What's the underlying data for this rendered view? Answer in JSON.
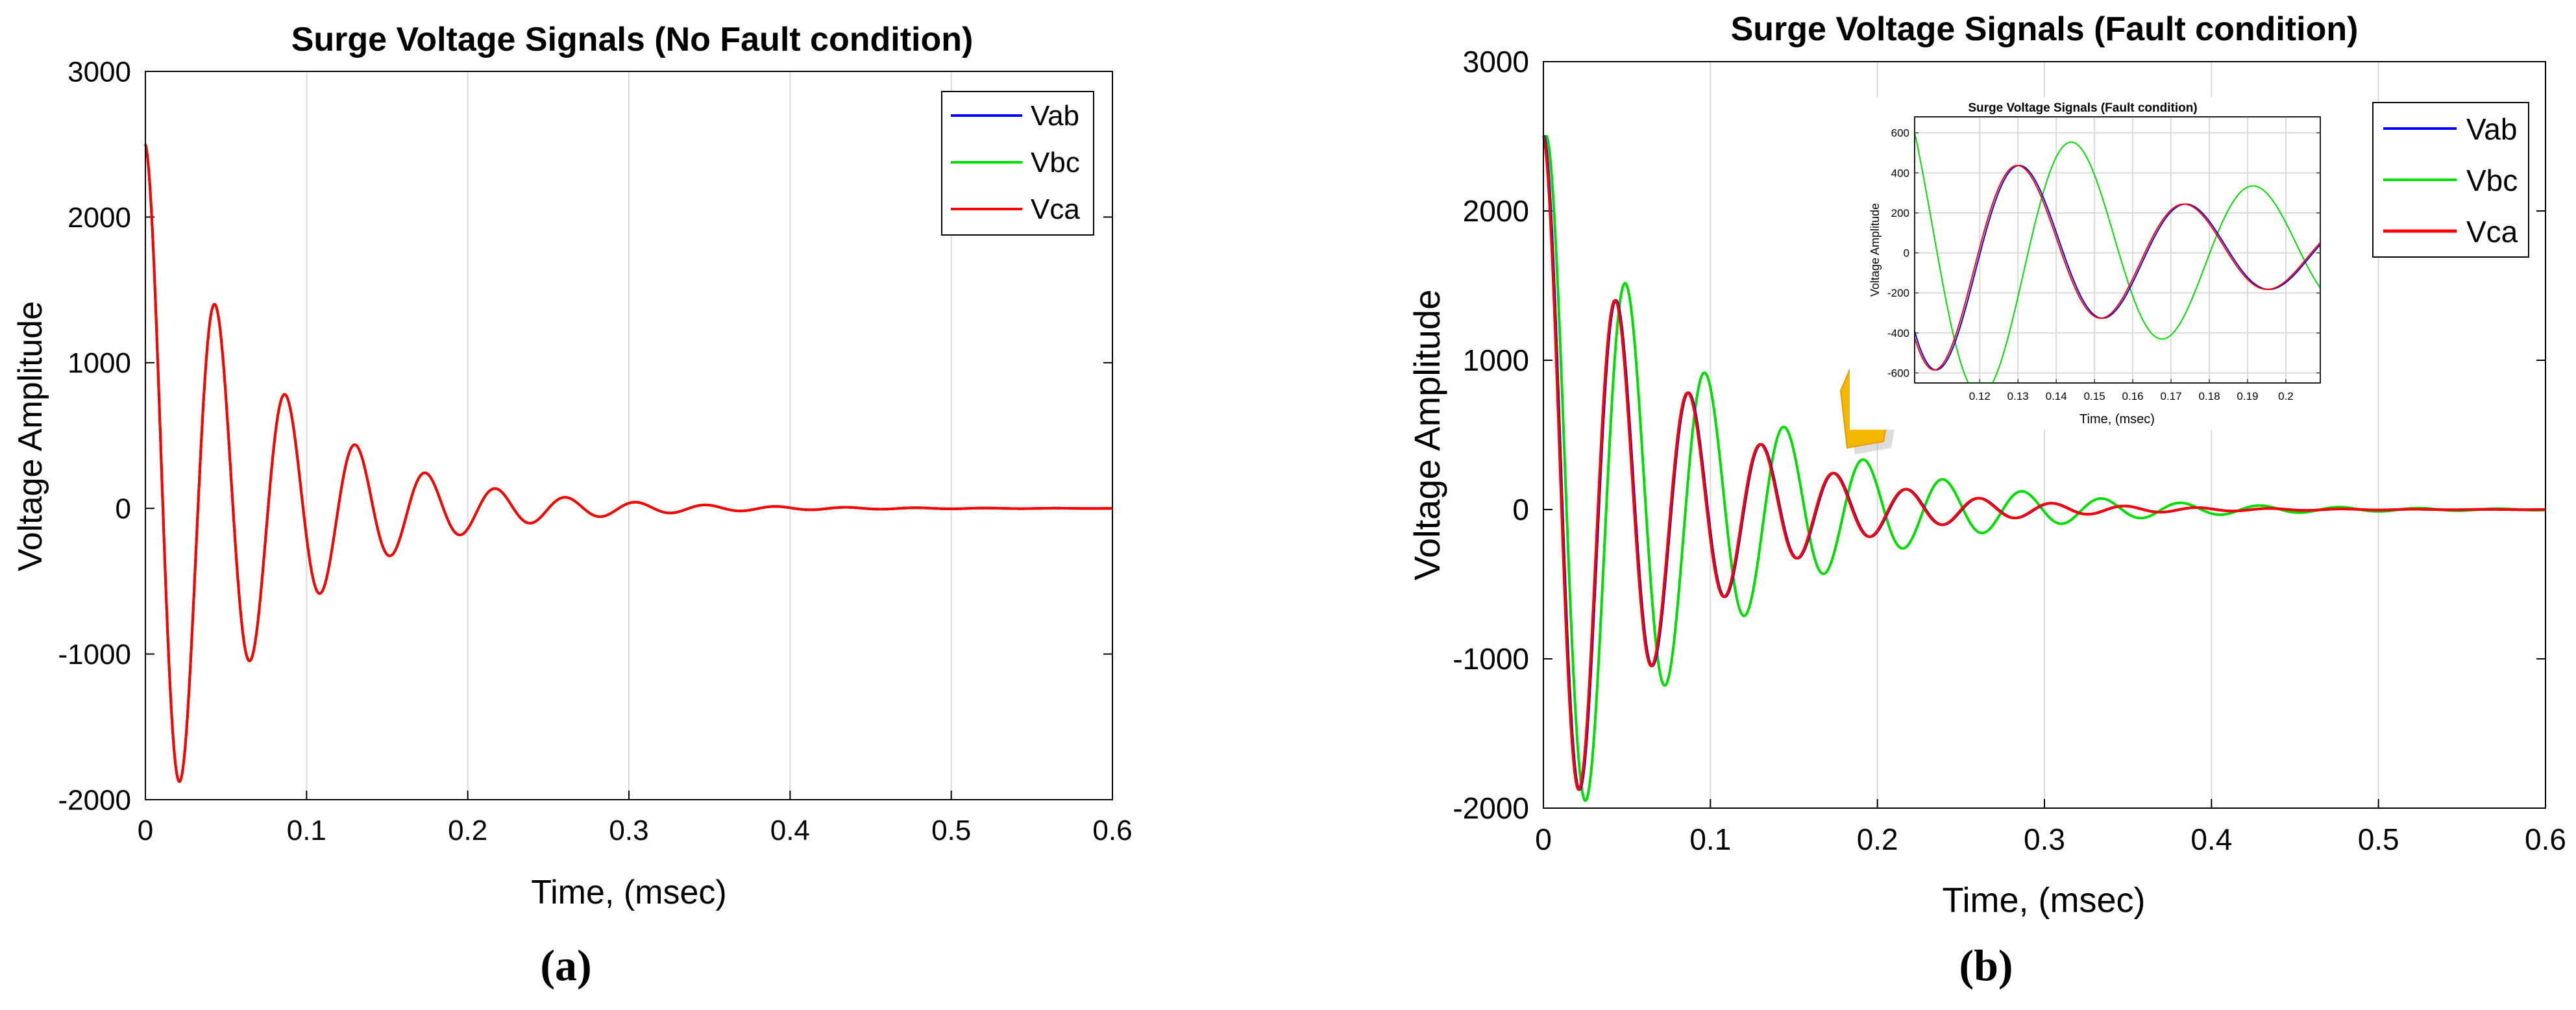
{
  "colors": {
    "Vab": "#0000ff",
    "Vbc": "#00dd00",
    "Vca": "#ff0000",
    "arrow": "#f5b800",
    "arrow_dark": "#e39a00"
  },
  "chart_data": [
    {
      "id": "a",
      "type": "line",
      "caption": "(a)",
      "title": "Surge Voltage Signals (No Fault condition)",
      "xlabel": "Time, (msec)",
      "ylabel": "Voltage Amplitude",
      "xlim": [
        0,
        0.6
      ],
      "ylim": [
        -2000,
        3000
      ],
      "xticks": [
        0,
        0.1,
        0.2,
        0.3,
        0.4,
        0.5,
        0.6
      ],
      "xtick_labels": [
        "0",
        "0.1",
        "0.2",
        "0.3",
        "0.4",
        "0.5",
        "0.6"
      ],
      "yticks": [
        -2000,
        -1000,
        0,
        1000,
        2000,
        3000
      ],
      "ytick_labels": [
        "-2000",
        "-1000",
        "0",
        "1000",
        "2000",
        "3000"
      ],
      "grid": "x",
      "legend": "top-right",
      "series": [
        {
          "name": "Vab",
          "amplitude": 2500,
          "decay_per_msec": 13.4,
          "period_msec": 0.0435,
          "delay_msec": 0
        },
        {
          "name": "Vbc",
          "amplitude": 2500,
          "decay_per_msec": 13.4,
          "period_msec": 0.0435,
          "delay_msec": 0
        },
        {
          "name": "Vca",
          "amplitude": 2500,
          "decay_per_msec": 13.4,
          "period_msec": 0.0435,
          "delay_msec": 0
        }
      ]
    },
    {
      "id": "b",
      "type": "line",
      "caption": "(b)",
      "title": "Surge Voltage Signals (Fault condition)",
      "xlabel": "Time, (msec)",
      "ylabel": "Voltage Amplitude",
      "xlim": [
        0,
        0.6
      ],
      "ylim": [
        -2000,
        3000
      ],
      "xticks": [
        0,
        0.1,
        0.2,
        0.3,
        0.4,
        0.5,
        0.6
      ],
      "xtick_labels": [
        "0",
        "0.1",
        "0.2",
        "0.3",
        "0.4",
        "0.5",
        "0.6"
      ],
      "yticks": [
        -2000,
        -1000,
        0,
        1000,
        2000,
        3000
      ],
      "ytick_labels": [
        "-2000",
        "-1000",
        "0",
        "1000",
        "2000",
        "3000"
      ],
      "grid": "x",
      "legend": "top-right",
      "series": [
        {
          "name": "Vab",
          "amplitude": 2500,
          "decay_per_msec": 13.4,
          "period_msec": 0.0435,
          "delay_msec": 0.0005
        },
        {
          "name": "Vbc",
          "amplitude": 2500,
          "decay_per_msec": 10.6,
          "period_msec": 0.0475,
          "delay_msec": 0.002
        },
        {
          "name": "Vca",
          "amplitude": 2500,
          "decay_per_msec": 13.4,
          "period_msec": 0.0435,
          "delay_msec": 0
        }
      ],
      "inset": {
        "title": "Surge Voltage Signals (Fault condition)",
        "xlabel": "Time, (msec)",
        "ylabel": "Voltage Amplitude",
        "xlim": [
          0.103,
          0.209
        ],
        "ylim": [
          -650,
          680
        ],
        "xticks": [
          0.12,
          0.13,
          0.14,
          0.15,
          0.16,
          0.17,
          0.18,
          0.19,
          0.2
        ],
        "xtick_labels": [
          "0.12",
          "0.13",
          "0.14",
          "0.15",
          "0.16",
          "0.17",
          "0.18",
          "0.19",
          "0.2"
        ],
        "yticks": [
          -600,
          -400,
          -200,
          0,
          200,
          400,
          600
        ],
        "ytick_labels": [
          "-600",
          "-400",
          "-200",
          "0",
          "200",
          "400",
          "600"
        ],
        "grid": "both"
      }
    }
  ]
}
